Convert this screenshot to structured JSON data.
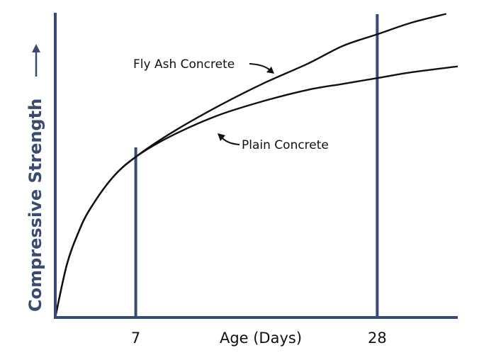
{
  "chart_data": {
    "type": "line",
    "xlabel": "Age (Days)",
    "ylabel": "Compressive Strength",
    "ylabel_arrow": "→",
    "x_tick_labels": [
      {
        "value": 7,
        "label": "7"
      },
      {
        "value": 28,
        "label": "28"
      }
    ],
    "xlim": [
      0,
      35
    ],
    "ylim": [
      0,
      1.0
    ],
    "grid": false,
    "legend": "none",
    "axis_color": "#3a4a72",
    "series": [
      {
        "name": "Fly Ash Concrete",
        "color": "#111111",
        "x": [
          0,
          1,
          2,
          3,
          5,
          7,
          10,
          14,
          18,
          22,
          25,
          28,
          31,
          34
        ],
        "y": [
          0,
          0.18,
          0.29,
          0.37,
          0.48,
          0.55,
          0.63,
          0.72,
          0.8,
          0.87,
          0.93,
          0.97,
          1.01,
          1.04
        ]
      },
      {
        "name": "Plain Concrete",
        "color": "#111111",
        "x": [
          0,
          1,
          2,
          3,
          5,
          7,
          10,
          14,
          18,
          22,
          25,
          28,
          31,
          35
        ],
        "y": [
          0,
          0.18,
          0.29,
          0.37,
          0.48,
          0.55,
          0.62,
          0.69,
          0.74,
          0.78,
          0.8,
          0.82,
          0.84,
          0.86
        ]
      }
    ],
    "annotations": [
      {
        "text": "Fly Ash Concrete",
        "points_to": "Fly Ash Concrete"
      },
      {
        "text": "Plain Concrete",
        "points_to": "Plain Concrete"
      }
    ]
  }
}
